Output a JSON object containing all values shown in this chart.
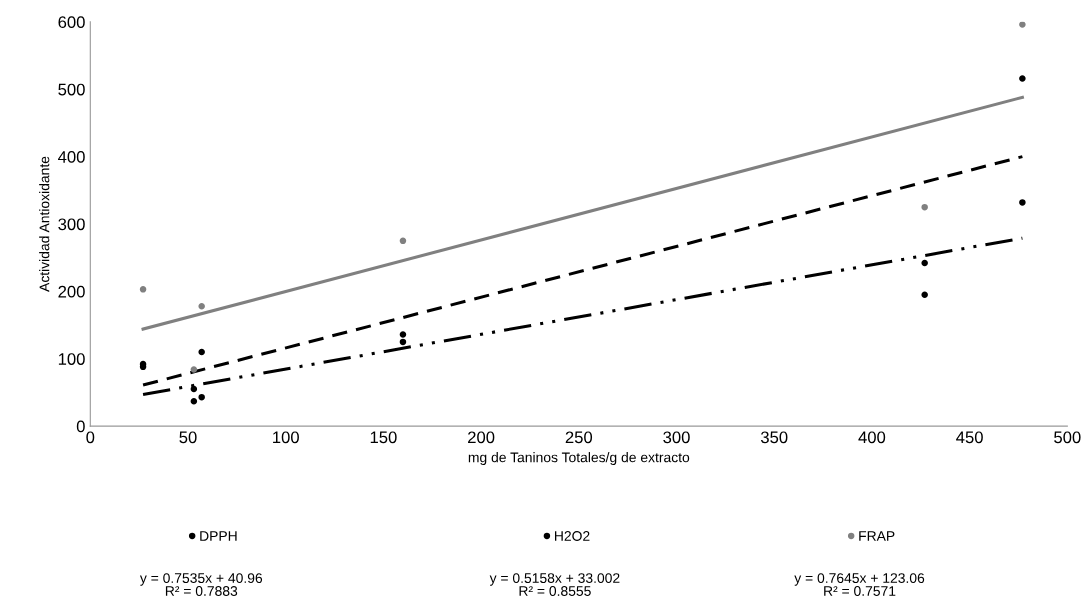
{
  "chart_data": {
    "type": "scatter",
    "xlabel": "mg de Taninos Totales/g de extracto",
    "ylabel": "Actividad Antioxidante",
    "xlim": [
      0,
      500
    ],
    "xticks": [
      0,
      50,
      100,
      150,
      200,
      250,
      300,
      350,
      400,
      450,
      500
    ],
    "ylim": [
      0,
      600
    ],
    "yticks": [
      0,
      100,
      200,
      300,
      400,
      500,
      600
    ],
    "grid": false,
    "legend": "bottom",
    "series": [
      {
        "name": "DPPH",
        "marker": "circle",
        "color": "#000000",
        "x": [
          27,
          53,
          57,
          160,
          427,
          477
        ],
        "values": [
          92,
          55,
          110,
          136,
          242,
          516
        ]
      },
      {
        "name": "H2O2",
        "marker": "circle",
        "color": "#000000",
        "x": [
          27,
          53,
          57,
          160,
          427,
          477
        ],
        "values": [
          88,
          37,
          43,
          125,
          195,
          332
        ]
      },
      {
        "name": "FRAP",
        "marker": "circle",
        "color": "#808080",
        "x": [
          27,
          53,
          57,
          160,
          427,
          477
        ],
        "values": [
          203,
          84,
          178,
          275,
          325,
          596
        ]
      },
      {
        "type": "line",
        "color": "#000000",
        "line_style": "dashed",
        "x": [
          27,
          477
        ],
        "values": [
          61,
          400
        ]
      },
      {
        "type": "line",
        "color": "#000000",
        "line_style": "dashdotdot",
        "x": [
          27,
          477
        ],
        "values": [
          47,
          279
        ]
      },
      {
        "type": "line",
        "color": "#808080",
        "line_style": "solid",
        "x": [
          27,
          477
        ],
        "values": [
          144,
          488
        ]
      }
    ],
    "annotations": [
      "y = 0.7535x + 40.96\nR² = 0.7883",
      "y = 0.5158x + 33.002\nR² = 0.8555",
      "y = 0.7645x + 123.06\nR² = 0.7571"
    ]
  }
}
